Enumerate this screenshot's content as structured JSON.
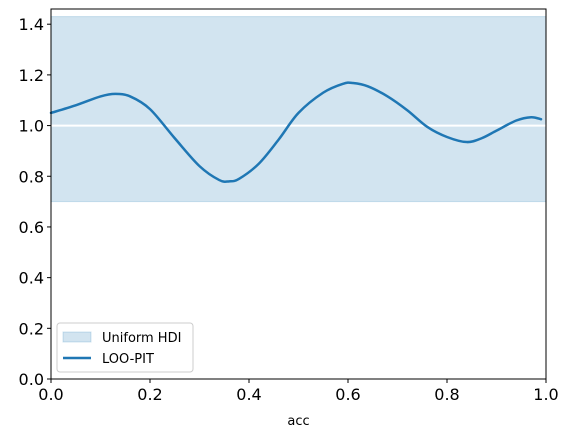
{
  "chart_data": {
    "type": "line",
    "title": "",
    "xlabel": "acc",
    "ylabel": "",
    "xlim": [
      0.0,
      1.0
    ],
    "ylim": [
      0.0,
      1.46
    ],
    "xticks": [
      0.0,
      0.2,
      0.4,
      0.6,
      0.8,
      1.0
    ],
    "xtick_labels": [
      "0.0",
      "0.2",
      "0.4",
      "0.6",
      "0.8",
      "1.0"
    ],
    "yticks": [
      0.0,
      0.2,
      0.4,
      0.6,
      0.8,
      1.0,
      1.2,
      1.4
    ],
    "ytick_labels": [
      "0.0",
      "0.2",
      "0.4",
      "0.6",
      "0.8",
      "1.0",
      "1.2",
      "1.4"
    ],
    "grid": false,
    "legend_position": "lower-left",
    "reference_line": {
      "y": 1.0,
      "color": "#ffffff"
    },
    "band": {
      "name": "Uniform HDI",
      "lower": 0.7,
      "upper": 1.43,
      "color": "#1f77b4",
      "opacity": 0.2
    },
    "series": [
      {
        "name": "LOO-PIT",
        "color": "#1f77b4",
        "x": [
          0.0,
          0.05,
          0.1,
          0.13,
          0.16,
          0.2,
          0.25,
          0.3,
          0.34,
          0.36,
          0.38,
          0.42,
          0.46,
          0.5,
          0.55,
          0.59,
          0.61,
          0.64,
          0.68,
          0.72,
          0.76,
          0.8,
          0.84,
          0.87,
          0.9,
          0.94,
          0.97,
          0.99
        ],
        "y": [
          1.05,
          1.08,
          1.115,
          1.125,
          1.115,
          1.065,
          0.95,
          0.84,
          0.785,
          0.78,
          0.79,
          0.85,
          0.945,
          1.05,
          1.13,
          1.165,
          1.168,
          1.155,
          1.115,
          1.06,
          0.995,
          0.955,
          0.935,
          0.95,
          0.98,
          1.02,
          1.033,
          1.025
        ]
      }
    ]
  }
}
